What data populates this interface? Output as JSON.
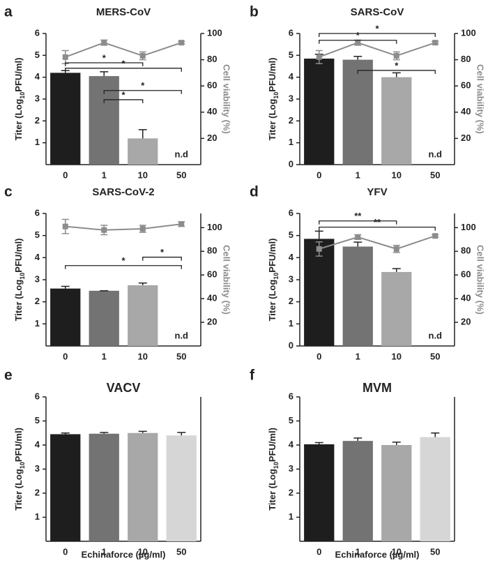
{
  "chart_data": [
    {
      "type": "bar",
      "panel": "a",
      "title": "MERS-CoV",
      "categories": [
        "0",
        "1",
        "10",
        "50"
      ],
      "values": [
        4.2,
        4.05,
        1.2,
        null
      ],
      "errors": [
        0.1,
        0.2,
        0.4,
        null
      ],
      "value_labels": [
        null,
        null,
        null,
        "n.d"
      ],
      "colors": [
        "#1e1e1e",
        "#737373",
        "#a8a8a8",
        "#d6d6d6"
      ],
      "ylim": [
        0,
        6
      ],
      "yticks": [
        1,
        2,
        3,
        4,
        5,
        6
      ],
      "y_label": [
        "Titer (Log",
        "10",
        "PFU/ml)"
      ],
      "y2lim": [
        0,
        100
      ],
      "y2ticks": [
        20,
        40,
        60,
        80,
        100
      ],
      "y2_label": "Cell viability (%)",
      "viability": {
        "axis": "y2",
        "color": "#8c8c8c",
        "values": [
          82,
          93,
          83,
          93
        ],
        "errors": [
          5,
          2,
          3,
          1
        ]
      },
      "brackets": [
        {
          "from": 0,
          "to": 2,
          "y": 4.66,
          "label": "*"
        },
        {
          "from": 0,
          "to": 3,
          "y": 4.41,
          "label": "*"
        },
        {
          "from": 1,
          "to": 3,
          "y": 3.39,
          "label": "*"
        },
        {
          "from": 1,
          "to": 2,
          "y": 2.97,
          "label": "*"
        }
      ]
    },
    {
      "type": "bar",
      "panel": "b",
      "title": "SARS-CoV",
      "categories": [
        "0",
        "1",
        "10",
        "50"
      ],
      "values": [
        4.85,
        4.8,
        4.0,
        null
      ],
      "errors": [
        0.2,
        0.15,
        0.2,
        null
      ],
      "value_labels": [
        null,
        null,
        null,
        "n.d"
      ],
      "colors": [
        "#1e1e1e",
        "#737373",
        "#a8a8a8",
        "#d6d6d6"
      ],
      "ylim": [
        0,
        6
      ],
      "yticks": [
        0,
        1,
        2,
        3,
        4,
        5,
        6
      ],
      "y_label": [
        "Titer (Log",
        "10",
        "PFU/ml)"
      ],
      "y2lim": [
        0,
        100
      ],
      "y2ticks": [
        20,
        40,
        60,
        80,
        100
      ],
      "y2_label": "Cell viability (%)",
      "viability": {
        "axis": "y2",
        "color": "#8c8c8c",
        "values": [
          82,
          93,
          83,
          93
        ],
        "errors": [
          5,
          2,
          3,
          1
        ]
      },
      "brackets": [
        {
          "from": 0,
          "to": 3,
          "y": 6.0,
          "label": "*"
        },
        {
          "from": 0,
          "to": 2,
          "y": 5.69,
          "label": "*"
        },
        {
          "from": 1,
          "to": 3,
          "y": 4.31,
          "label": "*"
        }
      ]
    },
    {
      "type": "bar",
      "panel": "c",
      "title": "SARS-CoV-2",
      "categories": [
        "0",
        "1",
        "10",
        "50"
      ],
      "values": [
        2.6,
        2.5,
        2.75,
        null
      ],
      "errors": [
        0.1,
        0,
        0.1,
        null
      ],
      "value_labels": [
        null,
        null,
        null,
        "n.d"
      ],
      "colors": [
        "#1e1e1e",
        "#737373",
        "#a8a8a8",
        "#d6d6d6"
      ],
      "ylim": [
        0,
        6
      ],
      "yticks": [
        1,
        2,
        3,
        4,
        5,
        6
      ],
      "y_label": [
        "Titer (Log",
        "10",
        "PFU/ml)"
      ],
      "y2lim": [
        0,
        112
      ],
      "y2ticks": [
        20,
        40,
        60,
        80,
        100
      ],
      "y2_label": "Cell viability (%)",
      "viability": {
        "axis": "y2",
        "color": "#8c8c8c",
        "values": [
          101,
          98,
          99,
          103
        ],
        "errors": [
          6,
          4,
          3,
          2
        ]
      },
      "brackets": [
        {
          "from": 0,
          "to": 3,
          "y": 3.64,
          "label": "*"
        },
        {
          "from": 2,
          "to": 3,
          "y": 4.02,
          "label": "*"
        }
      ]
    },
    {
      "type": "bar",
      "panel": "d",
      "title": "YFV",
      "categories": [
        "0",
        "1",
        "10",
        "50"
      ],
      "values": [
        4.85,
        4.5,
        3.35,
        null
      ],
      "errors": [
        0.35,
        0.2,
        0.15,
        null
      ],
      "value_labels": [
        null,
        null,
        null,
        "n.d"
      ],
      "colors": [
        "#1e1e1e",
        "#737373",
        "#a8a8a8",
        "#d6d6d6"
      ],
      "ylim": [
        0,
        6
      ],
      "yticks": [
        0,
        1,
        2,
        3,
        4,
        5,
        6
      ],
      "y_label": [
        "Titer (Log",
        "10",
        "PFU/ml)"
      ],
      "y2lim": [
        0,
        112
      ],
      "y2ticks": [
        20,
        40,
        60,
        80,
        100
      ],
      "y2_label": "Cell viability (%)",
      "viability": {
        "axis": "y2",
        "color": "#8c8c8c",
        "values": [
          82,
          92,
          82,
          93
        ],
        "errors": [
          6,
          2,
          3,
          1
        ]
      },
      "brackets": [
        {
          "from": 0,
          "to": 2,
          "y": 5.66,
          "label": "**"
        },
        {
          "from": 0,
          "to": 3,
          "y": 5.38,
          "label": "**"
        }
      ]
    },
    {
      "type": "bar",
      "panel": "e",
      "title": "VACV",
      "categories": [
        "0",
        "1",
        "10",
        "50"
      ],
      "values": [
        4.45,
        4.47,
        4.5,
        4.4
      ],
      "errors": [
        0.05,
        0.05,
        0.07,
        0.12
      ],
      "colors": [
        "#1e1e1e",
        "#737373",
        "#a8a8a8",
        "#d6d6d6"
      ],
      "ylim": [
        0,
        6
      ],
      "yticks": [
        1,
        2,
        3,
        4,
        5,
        6
      ],
      "y_label": [
        "Titer (Log",
        "10",
        "PFU/ml)"
      ],
      "x_label": "Echinaforce (µg/ml)"
    },
    {
      "type": "bar",
      "panel": "f",
      "title": "MVM",
      "categories": [
        "0",
        "1",
        "10",
        "50"
      ],
      "values": [
        4.03,
        4.17,
        4.0,
        4.33
      ],
      "errors": [
        0.07,
        0.12,
        0.12,
        0.17
      ],
      "colors": [
        "#1e1e1e",
        "#737373",
        "#a8a8a8",
        "#d6d6d6"
      ],
      "ylim": [
        0,
        6
      ],
      "yticks": [
        1,
        2,
        3,
        4,
        5,
        6
      ],
      "y_label": [
        "Titer (Log",
        "10",
        "PFU/ml)"
      ],
      "x_label": "Echinaforce (µg/ml)"
    }
  ]
}
